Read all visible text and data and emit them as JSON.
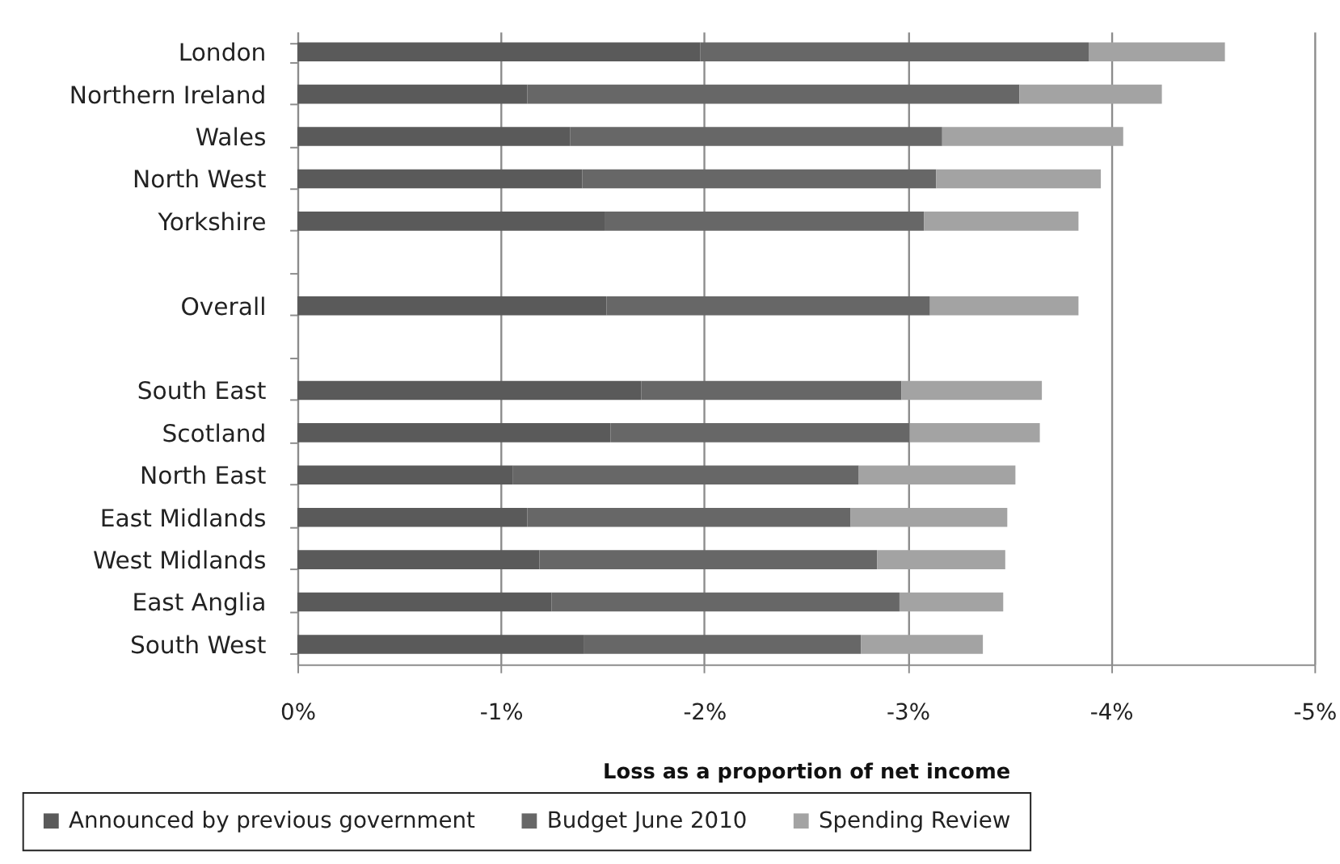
{
  "chart_data": {
    "type": "bar",
    "orientation": "horizontal",
    "stacked": true,
    "categories": [
      "London",
      "Northern Ireland",
      "Wales",
      "North West",
      "Yorkshire",
      null,
      "Overall",
      null,
      "South East",
      "Scotland",
      "North East",
      "East Midlands",
      "West Midlands",
      "East Anglia",
      "South West"
    ],
    "series": [
      {
        "name": "Announced by previous government",
        "color": "#5a5a5a",
        "values": [
          -1.98,
          -1.13,
          -1.34,
          -1.4,
          -1.51,
          null,
          -1.52,
          null,
          -1.69,
          -1.54,
          -1.06,
          -1.13,
          -1.19,
          -1.25,
          -1.41
        ]
      },
      {
        "name": "Budget June 2010",
        "color": "#676767",
        "values": [
          -1.91,
          -2.42,
          -1.83,
          -1.74,
          -1.57,
          null,
          -1.59,
          null,
          -1.28,
          -1.47,
          -1.7,
          -1.59,
          -1.66,
          -1.71,
          -1.36
        ]
      },
      {
        "name": "Spending Review",
        "color": "#a3a3a3",
        "values": [
          -0.67,
          -0.7,
          -0.89,
          -0.81,
          -0.76,
          null,
          -0.73,
          null,
          -0.69,
          -0.64,
          -0.77,
          -0.77,
          -0.63,
          -0.51,
          -0.6
        ]
      }
    ],
    "xlabel": "Loss as a proportion of net income",
    "xlim": [
      0,
      -5
    ],
    "xticks": [
      {
        "value": 0,
        "label": "0%"
      },
      {
        "value": -1,
        "label": "-1%"
      },
      {
        "value": -2,
        "label": "-2%"
      },
      {
        "value": -3,
        "label": "-3%"
      },
      {
        "value": -4,
        "label": "-4%"
      },
      {
        "value": -5,
        "label": "-5%"
      }
    ],
    "grid": "x",
    "legend": "bottom"
  }
}
